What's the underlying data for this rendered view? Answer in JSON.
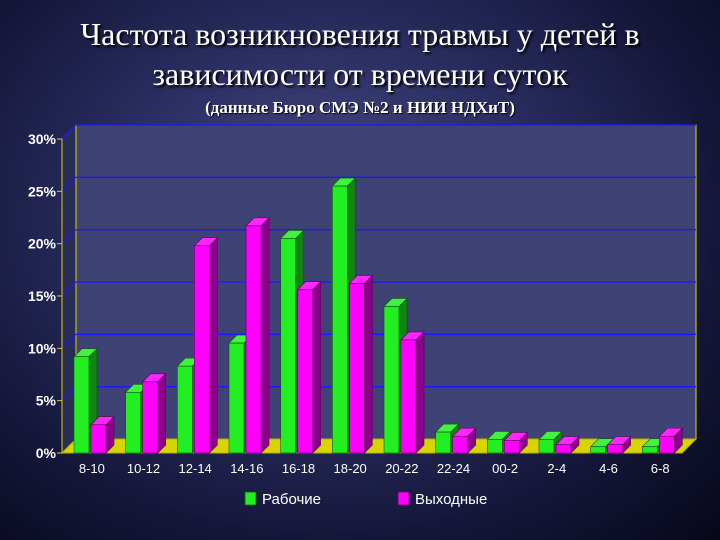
{
  "page": {
    "title_line1": "Частота возникновения травмы у детей в",
    "title_line2": "зависимости от времени суток",
    "subtitle": "(данные Бюро СМЭ №2 и НИИ НДХиТ)"
  },
  "colors": {
    "series_work": "#22ee22",
    "series_weekend": "#ff00ff",
    "gridline": "#1a1aff",
    "plot_wall": "#3f4275",
    "floor": "#d8d400"
  },
  "chart_data": {
    "type": "bar",
    "title": "",
    "xlabel": "",
    "ylabel": "",
    "ylim": [
      0,
      30
    ],
    "y_ticks": [
      "0%",
      "5%",
      "10%",
      "15%",
      "20%",
      "25%",
      "30%"
    ],
    "y_tick_values": [
      0,
      5,
      10,
      15,
      20,
      25,
      30
    ],
    "grid": true,
    "legend_position": "bottom",
    "categories": [
      "8-10",
      "10-12",
      "12-14",
      "14-16",
      "16-18",
      "18-20",
      "20-22",
      "22-24",
      "00-2",
      "2-4",
      "4-6",
      "6-8"
    ],
    "series": [
      {
        "name": "Рабочие",
        "values": [
          9.2,
          5.8,
          8.3,
          10.5,
          20.5,
          25.5,
          14.0,
          2.0,
          1.3,
          1.3,
          0.6,
          0.6
        ]
      },
      {
        "name": "Выходные",
        "values": [
          2.7,
          6.8,
          19.8,
          21.7,
          15.6,
          16.2,
          10.8,
          1.6,
          1.2,
          0.8,
          0.8,
          1.6
        ]
      }
    ]
  }
}
